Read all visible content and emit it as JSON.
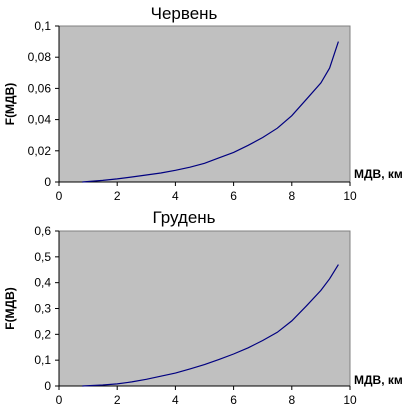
{
  "chart_data": [
    {
      "type": "line",
      "title": "Червень",
      "xlabel": "МДВ, км",
      "ylabel": "F(МДВ)",
      "xlim": [
        0,
        10
      ],
      "ylim": [
        0,
        0.1
      ],
      "x_ticks": [
        0,
        2,
        4,
        6,
        8,
        10
      ],
      "x_tick_labels": [
        "0",
        "2",
        "4",
        "6",
        "8",
        "10"
      ],
      "y_ticks": [
        0,
        0.02,
        0.04,
        0.06,
        0.08,
        0.1
      ],
      "y_tick_labels": [
        "0",
        "0,02",
        "0,04",
        "0,06",
        "0,08",
        "0,1"
      ],
      "grid": false,
      "plot_background": "#c0c0c0",
      "line_color": "#000080",
      "series": [
        {
          "x": [
            0.8,
            1.5,
            2.0,
            2.5,
            3.0,
            3.5,
            4.0,
            4.5,
            5.0,
            5.5,
            6.0,
            6.5,
            7.0,
            7.5,
            8.0,
            8.5,
            9.0,
            9.3,
            9.6
          ],
          "values": [
            0.0,
            0.001,
            0.002,
            0.0032,
            0.0045,
            0.0058,
            0.0075,
            0.0095,
            0.012,
            0.0155,
            0.019,
            0.0235,
            0.0285,
            0.0345,
            0.0425,
            0.053,
            0.0635,
            0.073,
            0.09
          ]
        }
      ]
    },
    {
      "type": "line",
      "title": "Грудень",
      "xlabel": "МДВ, км",
      "ylabel": "F(МДВ)",
      "xlim": [
        0,
        10
      ],
      "ylim": [
        0,
        0.6
      ],
      "x_ticks": [
        0,
        2,
        4,
        6,
        8,
        10
      ],
      "x_tick_labels": [
        "0",
        "2",
        "4",
        "6",
        "8",
        "10"
      ],
      "y_ticks": [
        0,
        0.1,
        0.2,
        0.3,
        0.4,
        0.5,
        0.6
      ],
      "y_tick_labels": [
        "0",
        "0,1",
        "0,2",
        "0,3",
        "0,4",
        "0,5",
        "0,6"
      ],
      "grid": false,
      "plot_background": "#c0c0c0",
      "line_color": "#000080",
      "series": [
        {
          "x": [
            0.8,
            1.5,
            2.0,
            2.5,
            3.0,
            3.5,
            4.0,
            4.5,
            5.0,
            5.5,
            6.0,
            6.5,
            7.0,
            7.5,
            8.0,
            8.5,
            9.0,
            9.3,
            9.6
          ],
          "values": [
            0.0,
            0.004,
            0.008,
            0.016,
            0.026,
            0.038,
            0.05,
            0.066,
            0.083,
            0.103,
            0.124,
            0.148,
            0.176,
            0.208,
            0.252,
            0.31,
            0.37,
            0.415,
            0.47
          ]
        }
      ]
    }
  ]
}
